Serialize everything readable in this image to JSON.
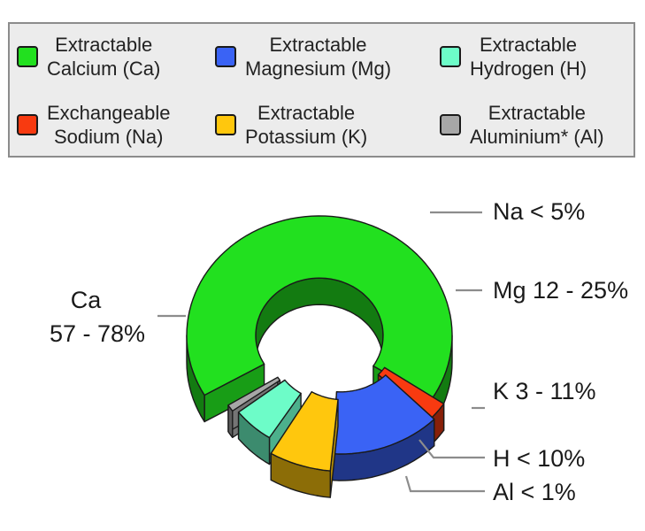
{
  "chart_data": {
    "type": "pie",
    "style": "exploded 3d donut",
    "slices": [
      {
        "key": "Ca",
        "name_line1": "Extractable",
        "name_line2": "Calcium (Ca)",
        "label_line1": "Ca",
        "label_line2": "57 - 78%",
        "range": [
          57,
          78
        ],
        "value": 67.5,
        "color": "#22e01f"
      },
      {
        "key": "Na",
        "name_line1": "Exchangeable",
        "name_line2": "Sodium (Na)",
        "label_line1": "Na < 5%",
        "label_line2": "",
        "range": [
          0,
          5
        ],
        "value": 2.5,
        "color": "#f83a10"
      },
      {
        "key": "Mg",
        "name_line1": "Extractable",
        "name_line2": "Magnesium (Mg)",
        "label_line1": "Mg 12 - 25%",
        "label_line2": "",
        "range": [
          12,
          25
        ],
        "value": 13.5,
        "color": "#3a63f5"
      },
      {
        "key": "K",
        "name_line1": "Extractable",
        "name_line2": "Potassium (K)",
        "label_line1": "K 3 - 11%",
        "label_line2": "",
        "range": [
          3,
          11
        ],
        "value": 7.0,
        "color": "#ffc70d"
      },
      {
        "key": "H",
        "name_line1": "Extractable",
        "name_line2": "Hydrogen (H)",
        "label_line1": "H < 10%",
        "label_line2": "",
        "range": [
          0,
          10
        ],
        "value": 5.5,
        "color": "#6dfcc8"
      },
      {
        "key": "Al",
        "name_line1": "Extractable",
        "name_line2": "Aluminium* (Al)",
        "label_line1": "Al < 1%",
        "label_line2": "",
        "range": [
          0,
          1
        ],
        "value": 1.0,
        "color": "#a7a7a7"
      }
    ],
    "legend_order": [
      "Ca",
      "Mg",
      "H",
      "Na",
      "K",
      "Al"
    ],
    "legend_position": "top"
  }
}
